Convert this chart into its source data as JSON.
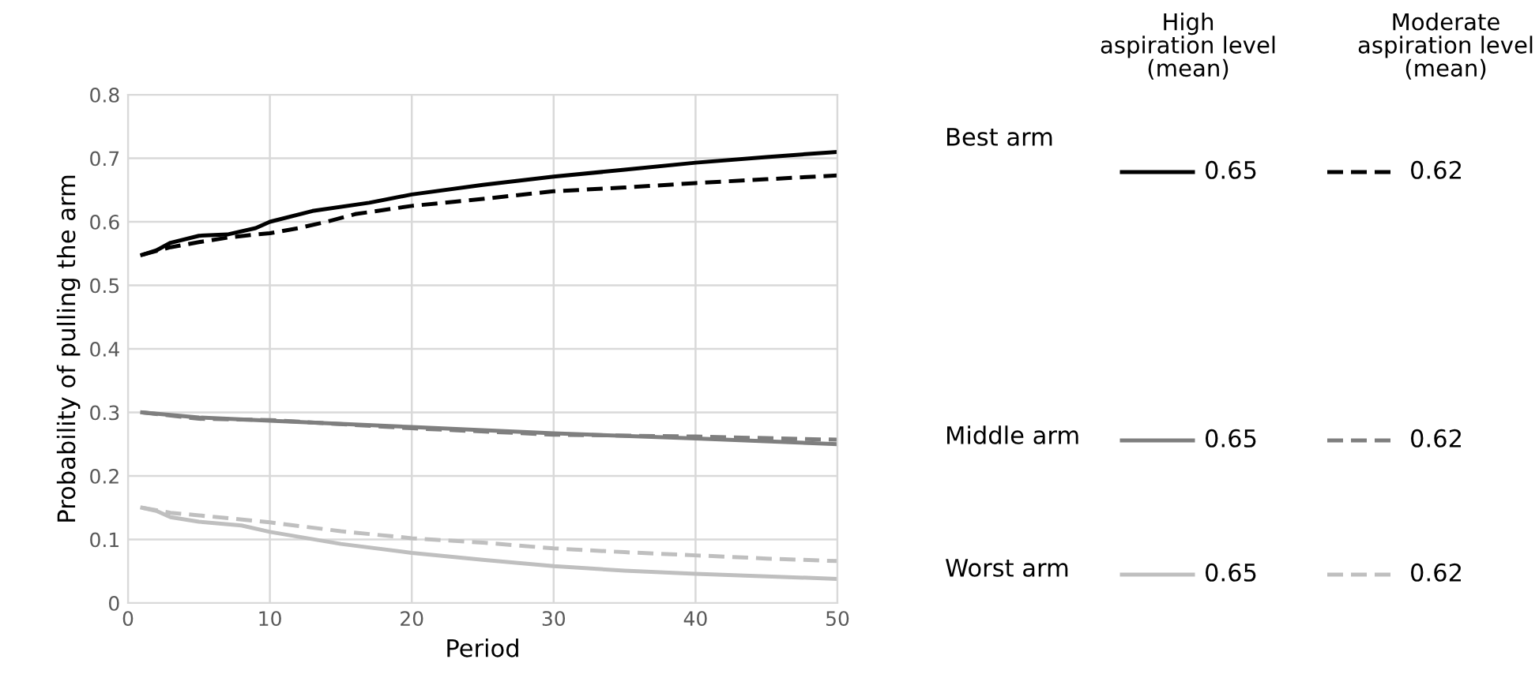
{
  "chart_data": {
    "type": "line",
    "xlabel": "Period",
    "ylabel": "Probability of pulling the arm",
    "xlim": [
      0,
      50
    ],
    "xticks": [
      0,
      10,
      20,
      30,
      40,
      50
    ],
    "ylim": [
      0,
      0.8
    ],
    "yticks": [
      0,
      0.1,
      0.2,
      0.3,
      0.4,
      0.5,
      0.6,
      0.7,
      0.8
    ],
    "grid": true,
    "legend": "right",
    "marker": "none",
    "annotations": [
      "High\naspiration level\n(mean)",
      "Moderate\naspiration level\n(mean)",
      "Best arm",
      "Middle arm",
      "Worst arm"
    ],
    "series": [
      {
        "name": "0.65",
        "color": "#000000",
        "line_style": "solid",
        "x": [
          1,
          2,
          3,
          5,
          7,
          9,
          10,
          13,
          17,
          20,
          25,
          30,
          35,
          40,
          45,
          50
        ],
        "values": [
          0.548,
          0.555,
          0.567,
          0.578,
          0.58,
          0.59,
          0.6,
          0.617,
          0.63,
          0.643,
          0.658,
          0.671,
          0.682,
          0.693,
          0.702,
          0.71
        ]
      },
      {
        "name": "0.62",
        "color": "#000000",
        "line_style": "dashed",
        "x": [
          1,
          3,
          5,
          7,
          9,
          10,
          12,
          14,
          16,
          20,
          25,
          30,
          35,
          40,
          45,
          50
        ],
        "values": [
          0.548,
          0.56,
          0.568,
          0.575,
          0.58,
          0.582,
          0.59,
          0.6,
          0.612,
          0.625,
          0.636,
          0.648,
          0.654,
          0.661,
          0.667,
          0.673
        ]
      },
      {
        "name": "0.65",
        "color": "#7f7f7f",
        "line_style": "solid",
        "x": [
          1,
          5,
          10,
          20,
          30,
          40,
          50
        ],
        "values": [
          0.3,
          0.292,
          0.287,
          0.277,
          0.267,
          0.259,
          0.25
        ]
      },
      {
        "name": "0.62",
        "color": "#7f7f7f",
        "line_style": "dashed",
        "x": [
          1,
          5,
          10,
          20,
          30,
          40,
          50
        ],
        "values": [
          0.3,
          0.29,
          0.288,
          0.275,
          0.265,
          0.262,
          0.257
        ]
      },
      {
        "name": "0.65",
        "color": "#bfbfbf",
        "line_style": "solid",
        "x": [
          1,
          2,
          3,
          5,
          8,
          10,
          15,
          20,
          25,
          30,
          35,
          40,
          45,
          50
        ],
        "values": [
          0.15,
          0.145,
          0.135,
          0.128,
          0.122,
          0.112,
          0.093,
          0.079,
          0.068,
          0.058,
          0.051,
          0.046,
          0.042,
          0.038
        ]
      },
      {
        "name": "0.62",
        "color": "#bfbfbf",
        "line_style": "dashed",
        "x": [
          1,
          3,
          5,
          10,
          15,
          20,
          25,
          30,
          35,
          40,
          45,
          50
        ],
        "values": [
          0.15,
          0.142,
          0.138,
          0.127,
          0.113,
          0.102,
          0.095,
          0.086,
          0.08,
          0.075,
          0.07,
          0.066
        ]
      }
    ]
  }
}
